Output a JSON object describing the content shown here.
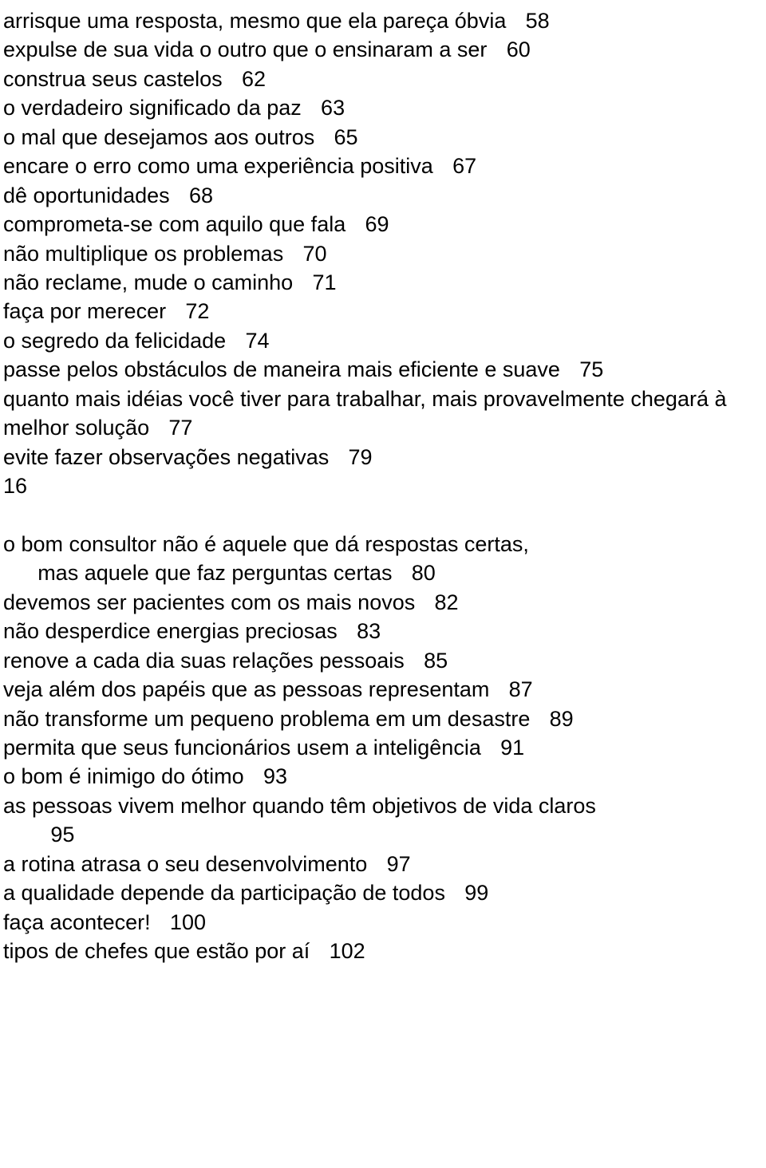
{
  "entries": [
    {
      "title": "arrisque uma resposta, mesmo que ela pareça óbvia",
      "page": "58"
    },
    {
      "title": "expulse de sua vida o outro que o ensinaram a ser",
      "page": "60"
    },
    {
      "title": "construa seus castelos",
      "page": "62"
    },
    {
      "title": "o verdadeiro significado da paz",
      "page": "63"
    },
    {
      "title": "o mal que desejamos aos outros",
      "page": "65"
    },
    {
      "title": "encare o erro como uma experiência positiva",
      "page": "67"
    },
    {
      "title": "dê oportunidades",
      "page": "68"
    },
    {
      "title": "comprometa-se com aquilo que fala",
      "page": "69"
    },
    {
      "title": "não multiplique os problemas",
      "page": "70"
    },
    {
      "title": "não reclame, mude o caminho",
      "page": "71"
    },
    {
      "title": "faça por merecer",
      "page": "72"
    },
    {
      "title": "o segredo da felicidade",
      "page": "74"
    },
    {
      "title": "passe pelos obstáculos de maneira mais eficiente e suave",
      "page": "75"
    },
    {
      "title": "quanto mais idéias você tiver para trabalhar, mais provavelmente chegará à melhor solução",
      "page": "77"
    },
    {
      "title": "evite fazer observações negativas",
      "page": "79"
    },
    {
      "standalone": "16"
    },
    {
      "gap": true
    },
    {
      "title": "o bom consultor não é aquele que dá respostas certas,",
      "page": ""
    },
    {
      "indent": true,
      "title": "mas aquele que faz perguntas certas",
      "page": "80"
    },
    {
      "title": "devemos ser pacientes com os mais novos",
      "page": "82"
    },
    {
      "title": "não desperdice energias preciosas",
      "page": "83"
    },
    {
      "title": "renove a cada dia suas relações pessoais",
      "page": "85"
    },
    {
      "title": "veja além dos papéis que as pessoas representam",
      "page": "87"
    },
    {
      "title": "não transforme um pequeno problema em um desastre",
      "page": "89"
    },
    {
      "title": "permita que seus funcionários usem a inteligência",
      "page": "91"
    },
    {
      "title": "o bom é inimigo do ótimo",
      "page": "93"
    },
    {
      "title": "as pessoas vivem melhor quando têm objetivos de vida claros",
      "page": ""
    },
    {
      "wrapno": "95"
    },
    {
      "title": "a rotina atrasa o seu desenvolvimento",
      "page": "97"
    },
    {
      "title": "a qualidade depende da participação de todos",
      "page": "99"
    },
    {
      "title": "faça acontecer!",
      "page": "100"
    },
    {
      "title": "tipos de chefes que estão por aí",
      "page": "102"
    }
  ]
}
